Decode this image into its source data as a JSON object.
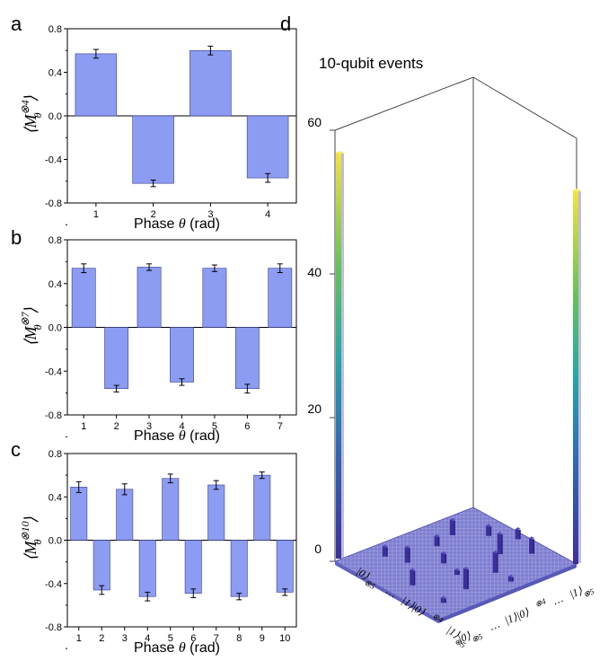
{
  "panels": [
    {
      "letter": "a",
      "xlabel_prefix": "Phase",
      "xlabel_symbol": "θ",
      "xlabel_suffix": "(rad)",
      "ylabel": {
        "lang": "⟨",
        "base": "M",
        "sub": "θ",
        "sup": "⊗4",
        "rang": "⟩"
      }
    },
    {
      "letter": "b",
      "xlabel_prefix": "Phase",
      "xlabel_symbol": "θ",
      "xlabel_suffix": "(rad)",
      "ylabel": {
        "lang": "⟨",
        "base": "M",
        "sub": "θ",
        "sup": "⊗7",
        "rang": "⟩"
      }
    },
    {
      "letter": "c",
      "xlabel_prefix": "Phase",
      "xlabel_symbol": "θ",
      "xlabel_suffix": "(rad)",
      "ylabel": {
        "lang": "⟨",
        "base": "M",
        "sub": "θ",
        "sup": "⊗10",
        "rang": "⟩"
      }
    },
    {
      "letter": "d",
      "title": "10-qubit events",
      "zticks": [
        "0",
        "20",
        "40",
        "60"
      ],
      "axis_labels_left": [
        "|0⟩",
        "⊗5",
        "…",
        "|1⟩|0⟩",
        "⊗4",
        "|1⟩",
        "⊗5"
      ],
      "axis_labels_right": [
        "|0⟩",
        "⊗5",
        "…",
        "|1⟩|0⟩",
        "⊗4",
        "…",
        "|1⟩",
        "⊗5"
      ]
    }
  ],
  "chart_data": [
    {
      "type": "bar",
      "categories": [
        "1",
        "2",
        "3",
        "4"
      ],
      "values": [
        0.57,
        -0.62,
        0.6,
        -0.57
      ],
      "errors": [
        0.04,
        0.03,
        0.04,
        0.04
      ],
      "ylim": [
        -0.8,
        0.8
      ],
      "yticks": [
        "0.8",
        "0.4",
        "0.0",
        "-0.4",
        "-0.8"
      ],
      "color": "#8c9cf2"
    },
    {
      "type": "bar",
      "categories": [
        "1",
        "2",
        "3",
        "4",
        "5",
        "6",
        "7"
      ],
      "values": [
        0.54,
        -0.56,
        0.55,
        -0.5,
        0.54,
        -0.56,
        0.54
      ],
      "errors": [
        0.04,
        0.03,
        0.03,
        0.03,
        0.03,
        0.04,
        0.04
      ],
      "ylim": [
        -0.8,
        0.8
      ],
      "yticks": [
        "0.8",
        "0.4",
        "0.0",
        "-0.4",
        "-0.8"
      ],
      "color": "#8c9cf2"
    },
    {
      "type": "bar",
      "categories": [
        "1",
        "2",
        "3",
        "4",
        "5",
        "6",
        "7",
        "8",
        "9",
        "10"
      ],
      "values": [
        0.49,
        -0.46,
        0.47,
        -0.52,
        0.57,
        -0.49,
        0.51,
        -0.52,
        0.6,
        -0.48
      ],
      "errors": [
        0.05,
        0.04,
        0.05,
        0.04,
        0.04,
        0.04,
        0.04,
        0.03,
        0.03,
        0.03
      ],
      "ylim": [
        -0.8,
        0.8
      ],
      "yticks": [
        "0.8",
        "0.4",
        "0.0",
        "-0.4",
        "-0.8"
      ],
      "color": "#8c9cf2"
    },
    {
      "type": "bar3d",
      "title": "10-qubit events",
      "zlim": [
        0,
        60
      ],
      "zticks": [
        0,
        20,
        40,
        60
      ],
      "grid": "32x32",
      "tall_bars": [
        {
          "state": "|0⟩⊗10",
          "value": 55
        },
        {
          "state": "|1⟩⊗10",
          "value": 51
        }
      ],
      "small_bars": [
        3,
        2,
        1,
        4,
        2,
        1,
        4,
        3,
        2,
        2,
        1,
        3,
        4,
        2,
        3
      ]
    }
  ]
}
